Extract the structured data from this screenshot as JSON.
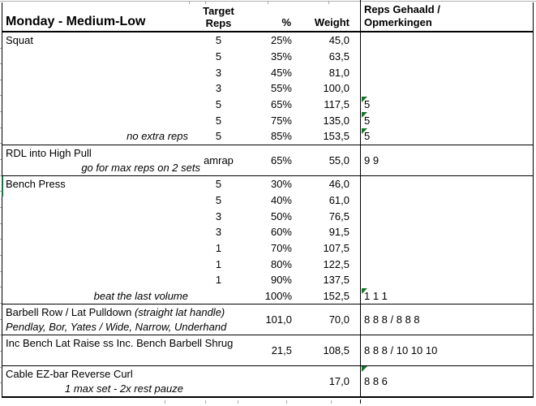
{
  "title": "Monday - Medium-Low",
  "columns": {
    "target_line1": "Target",
    "target_line2": "Reps",
    "pct": "%",
    "weight": "Weight",
    "result_line1": "Reps Gehaald /",
    "result_line2": "Opmerkingen"
  },
  "colors": {
    "flag_green": "#147328",
    "section_marker_green": "#1e7145",
    "border": "#000000",
    "gridline_gray": "#a6a6a6"
  },
  "sections": [
    {
      "type": "grid",
      "exercise": "Squat",
      "rows": [
        {
          "label": "Squat",
          "target": "5",
          "pct": "25%",
          "weight": "45,0"
        },
        {
          "target": "5",
          "pct": "35%",
          "weight": "63,5"
        },
        {
          "target": "3",
          "pct": "45%",
          "weight": "81,0"
        },
        {
          "target": "3",
          "pct": "55%",
          "weight": "100,0"
        },
        {
          "target": "5",
          "pct": "65%",
          "weight": "117,5",
          "result": "5",
          "flag": true
        },
        {
          "target": "5",
          "pct": "75%",
          "weight": "135,0",
          "result": "5",
          "flag": true
        },
        {
          "note": "no extra reps",
          "target": "5",
          "pct": "85%",
          "weight": "153,5",
          "result": "5",
          "flag": true
        }
      ]
    },
    {
      "type": "merged",
      "line1": "RDL into High Pull",
      "line2": "go for max reps on 2 sets",
      "line2_align": "right",
      "target": "amrap",
      "pct": "65%",
      "weight": "55,0",
      "result": "9 9",
      "flag": false
    },
    {
      "type": "grid",
      "exercise": "Bench Press",
      "rows": [
        {
          "label": "Bench Press",
          "target": "5",
          "pct": "30%",
          "weight": "46,0"
        },
        {
          "target": "5",
          "pct": "40%",
          "weight": "61,0"
        },
        {
          "target": "3",
          "pct": "50%",
          "weight": "76,5"
        },
        {
          "target": "3",
          "pct": "60%",
          "weight": "91,5"
        },
        {
          "target": "1",
          "pct": "70%",
          "weight": "107,5"
        },
        {
          "target": "1",
          "pct": "80%",
          "weight": "122,5"
        },
        {
          "target": "1",
          "pct": "90%",
          "weight": "137,5"
        },
        {
          "note": "beat the last volume",
          "target": "",
          "pct": "100%",
          "weight": "152,5",
          "result": "1 1 1",
          "flag": true
        }
      ]
    },
    {
      "type": "merged",
      "line1": "Barbell Row / Lat Pulldown",
      "line1_italic": "(straight lat handle)",
      "line2": "Pendlay, Bor, Yates / Wide, Narrow, Underhand",
      "line2_align": "left",
      "target": "",
      "pct": "101,0",
      "weight": "70,0",
      "result": "8 8 8 / 8 8 8",
      "flag": false
    },
    {
      "type": "merged",
      "line1": "Inc Bench Lat Raise ss Inc. Bench Barbell Shrug",
      "line2": "",
      "target": "",
      "pct": "21,5",
      "weight": "108,5",
      "result": "8 8 8 / 10 10 10",
      "flag": false
    },
    {
      "type": "merged",
      "line1": "Cable EZ-bar Reverse Curl",
      "line2": "1 max set - 2x rest pauze",
      "line2_align": "center",
      "target": "",
      "pct": "",
      "weight": "17,0",
      "result": "8 8 6",
      "flag": true
    }
  ]
}
